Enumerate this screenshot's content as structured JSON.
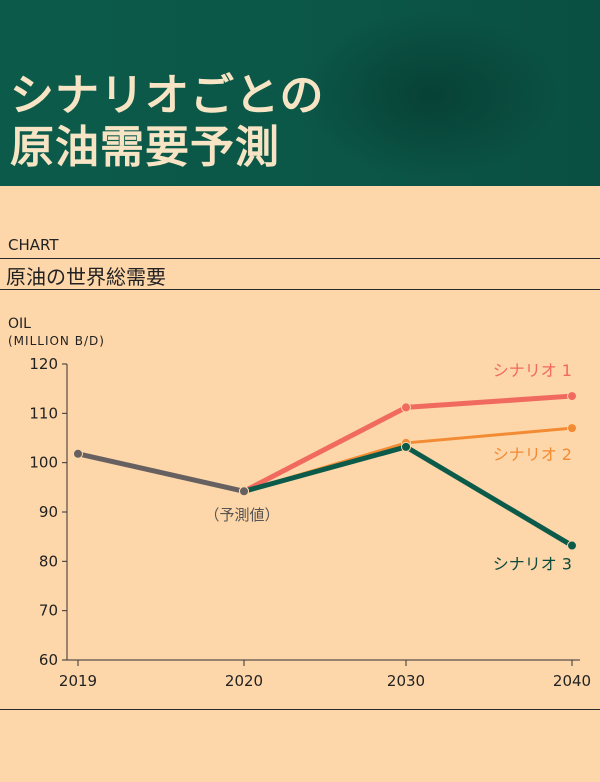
{
  "header": {
    "title_line1": "シナリオごとの",
    "title_line2": "原油需要予測",
    "bg_color": "#0c5b4a",
    "text_color": "#f7e4c4"
  },
  "section": {
    "kicker": "CHART",
    "title": "原油の世界総需要"
  },
  "axis": {
    "ylabel": "OIL",
    "yunit": "(MILLION B/D)"
  },
  "chart_data": {
    "type": "line",
    "title": "原油の世界総需要",
    "ylabel": "OIL (MILLION B/D)",
    "xlabel": "",
    "categories": [
      "2019",
      "2020",
      "2030",
      "2040"
    ],
    "ylim": [
      60,
      120
    ],
    "yticks": [
      60,
      70,
      80,
      90,
      100,
      110,
      120
    ],
    "grid": false,
    "annotation": "（予測値）",
    "series": [
      {
        "name": "",
        "color": "#666060",
        "x": [
          2019,
          2020
        ],
        "values": [
          101.8,
          94.2
        ]
      },
      {
        "name": "シナリオ 1",
        "color": "#f06a60",
        "x": [
          2020,
          2030,
          2040
        ],
        "values": [
          94.2,
          111.2,
          113.5
        ]
      },
      {
        "name": "シナリオ 2",
        "color": "#f28b33",
        "x": [
          2020,
          2030,
          2040
        ],
        "values": [
          94.2,
          104.0,
          107.0
        ]
      },
      {
        "name": "シナリオ 3",
        "color": "#0c5b4a",
        "x": [
          2020,
          2030,
          2040
        ],
        "values": [
          94.2,
          103.2,
          83.2
        ]
      }
    ]
  }
}
